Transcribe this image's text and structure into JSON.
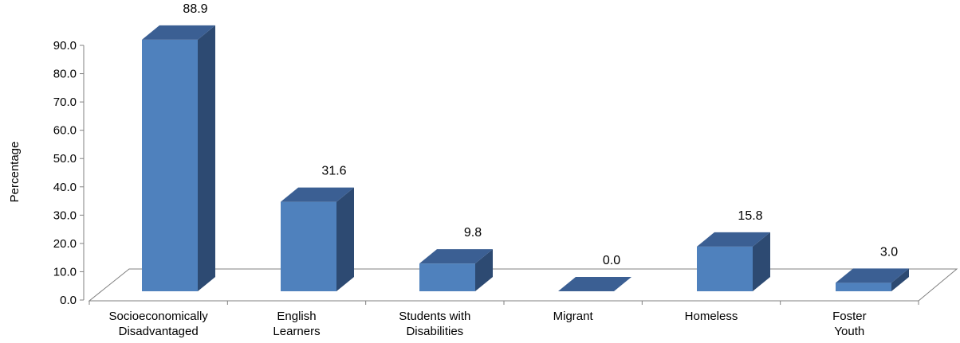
{
  "chart_data": {
    "type": "bar",
    "style": "3d-column",
    "ylabel": "Percentage",
    "ylim": [
      0,
      90
    ],
    "yticks": [
      "0.0",
      "10.0",
      "20.0",
      "30.0",
      "40.0",
      "50.0",
      "60.0",
      "70.0",
      "80.0",
      "90.0"
    ],
    "categories": [
      [
        "Socioeconomically",
        "Disadvantaged"
      ],
      [
        "English",
        "Learners"
      ],
      [
        "Students with",
        "Disabilities"
      ],
      [
        "Migrant"
      ],
      [
        "Homeless"
      ],
      [
        "Foster",
        "Youth"
      ]
    ],
    "values": [
      88.9,
      31.6,
      9.8,
      0.0,
      15.8,
      3.0
    ],
    "data_labels": [
      "88.9",
      "31.6",
      "9.8",
      "0.0",
      "15.8",
      "3.0"
    ],
    "legend": "none",
    "grid": false,
    "colors": {
      "front": "#4F81BD",
      "top": "#3B5F93",
      "side": "#2D4A72",
      "axis": "#808080"
    }
  }
}
